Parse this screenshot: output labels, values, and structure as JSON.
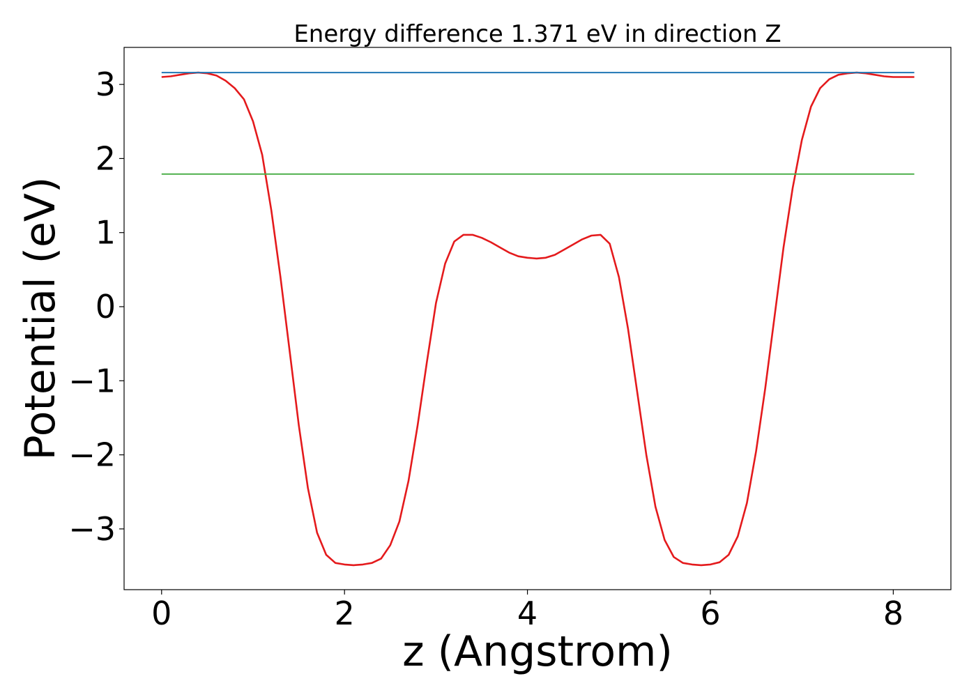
{
  "chart_data": {
    "type": "line",
    "title": "Energy difference 1.371 eV in direction Z",
    "xlabel": "z (Angstrom)",
    "ylabel": "Potential (eV)",
    "xlim": [
      -0.41,
      8.63
    ],
    "ylim": [
      -3.82,
      3.5
    ],
    "grid": false,
    "xticks": [
      {
        "value": 0,
        "label": "0"
      },
      {
        "value": 2,
        "label": "2"
      },
      {
        "value": 4,
        "label": "4"
      },
      {
        "value": 6,
        "label": "6"
      },
      {
        "value": 8,
        "label": "8"
      }
    ],
    "yticks": [
      {
        "value": -3,
        "label": "−3"
      },
      {
        "value": -2,
        "label": "−2"
      },
      {
        "value": -1,
        "label": "−1"
      },
      {
        "value": 0,
        "label": "0"
      },
      {
        "value": 1,
        "label": "1"
      },
      {
        "value": 2,
        "label": "2"
      },
      {
        "value": 3,
        "label": "3"
      }
    ],
    "series": [
      {
        "color": "#e41a1c",
        "style": "curve",
        "x": [
          0.0,
          0.1,
          0.2,
          0.3,
          0.4,
          0.5,
          0.6,
          0.7,
          0.8,
          0.9,
          1.0,
          1.1,
          1.2,
          1.3,
          1.4,
          1.5,
          1.6,
          1.7,
          1.8,
          1.9,
          2.0,
          2.1,
          2.2,
          2.3,
          2.4,
          2.5,
          2.6,
          2.7,
          2.8,
          2.9,
          3.0,
          3.1,
          3.2,
          3.3,
          3.4,
          3.5,
          3.6,
          3.7,
          3.8,
          3.9,
          4.0,
          4.1,
          4.2,
          4.3,
          4.4,
          4.5,
          4.6,
          4.7,
          4.8,
          4.9,
          5.0,
          5.1,
          5.2,
          5.3,
          5.4,
          5.5,
          5.6,
          5.7,
          5.8,
          5.9,
          6.0,
          6.1,
          6.2,
          6.3,
          6.4,
          6.5,
          6.6,
          6.7,
          6.8,
          6.9,
          7.0,
          7.1,
          7.2,
          7.3,
          7.4,
          7.5,
          7.6,
          7.7,
          7.8,
          7.9,
          8.0,
          8.1,
          8.23
        ],
        "y": [
          3.1,
          3.11,
          3.13,
          3.15,
          3.16,
          3.15,
          3.12,
          3.05,
          2.95,
          2.8,
          2.5,
          2.05,
          1.3,
          0.4,
          -0.6,
          -1.6,
          -2.45,
          -3.05,
          -3.35,
          -3.46,
          -3.48,
          -3.49,
          -3.48,
          -3.46,
          -3.4,
          -3.22,
          -2.9,
          -2.35,
          -1.6,
          -0.75,
          0.05,
          0.58,
          0.88,
          0.97,
          0.97,
          0.93,
          0.87,
          0.8,
          0.73,
          0.68,
          0.66,
          0.65,
          0.66,
          0.7,
          0.77,
          0.84,
          0.91,
          0.96,
          0.97,
          0.85,
          0.4,
          -0.3,
          -1.15,
          -2.0,
          -2.7,
          -3.15,
          -3.38,
          -3.46,
          -3.48,
          -3.49,
          -3.48,
          -3.45,
          -3.35,
          -3.1,
          -2.65,
          -1.95,
          -1.1,
          -0.15,
          0.8,
          1.6,
          2.25,
          2.7,
          2.95,
          3.07,
          3.13,
          3.15,
          3.16,
          3.15,
          3.13,
          3.11,
          3.1,
          3.1,
          3.1
        ]
      },
      {
        "color": "#1f77b4",
        "style": "hline",
        "x": [
          0,
          8.23
        ],
        "y": [
          3.16,
          3.16
        ]
      },
      {
        "color": "#4daf4a",
        "style": "hline",
        "x": [
          0,
          8.23
        ],
        "y": [
          1.79,
          1.79
        ]
      }
    ]
  }
}
